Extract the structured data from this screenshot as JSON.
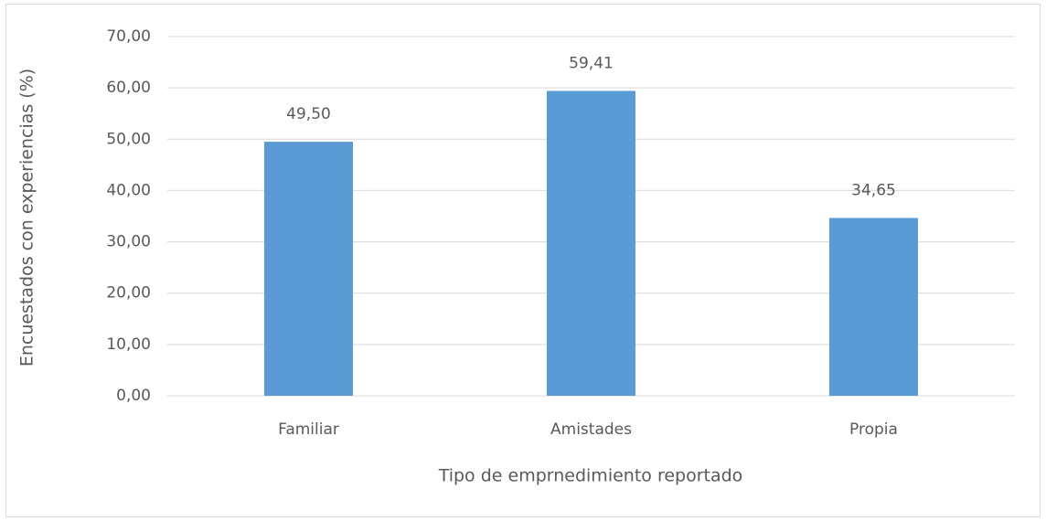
{
  "chart_data": {
    "type": "bar",
    "xlabel": "Tipo de emprnedimiento  reportado",
    "ylabel": "Encuestados con experiencias (%)",
    "categories": [
      "Familiar",
      "Amistades",
      "Propia"
    ],
    "values": [
      49.5,
      59.41,
      34.65
    ],
    "value_labels": [
      "49,50",
      "59,41",
      "34,65"
    ],
    "color": "#5b9bd5",
    "ylim": [
      0,
      70
    ],
    "yticks": [
      {
        "value": 0,
        "label": "0,00"
      },
      {
        "value": 10,
        "label": "10,00"
      },
      {
        "value": 20,
        "label": "20,00"
      },
      {
        "value": 30,
        "label": "30,00"
      },
      {
        "value": 40,
        "label": "40,00"
      },
      {
        "value": 50,
        "label": "50,00"
      },
      {
        "value": 60,
        "label": "60,00"
      },
      {
        "value": 70,
        "label": "70,00"
      }
    ],
    "grid": true
  }
}
